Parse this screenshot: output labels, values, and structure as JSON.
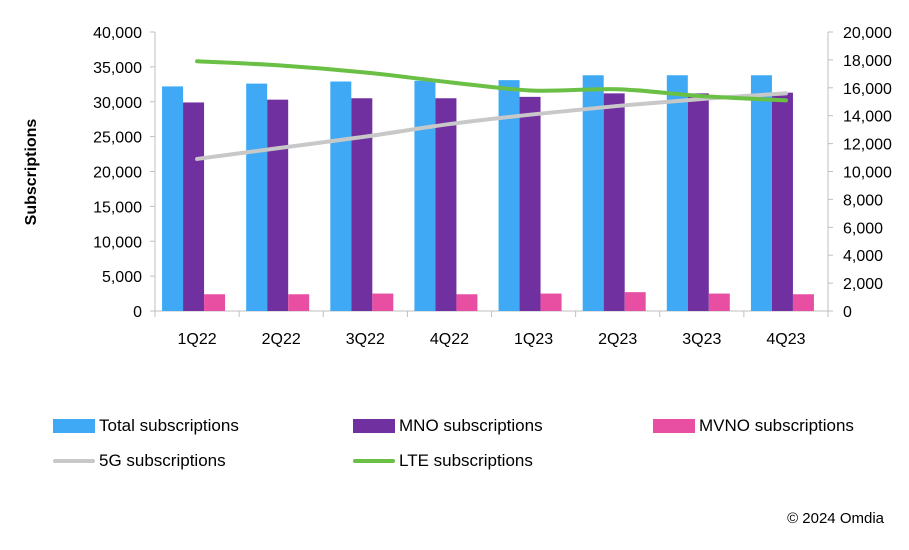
{
  "chart_data": {
    "type": "bar",
    "title": "",
    "xlabel": "",
    "ylabel": "Subscriptions",
    "categories": [
      "1Q22",
      "2Q22",
      "3Q22",
      "4Q22",
      "1Q23",
      "2Q23",
      "3Q23",
      "4Q23"
    ],
    "ylim": [
      0,
      40000
    ],
    "y2lim": [
      0,
      20000
    ],
    "yticks": [
      "0",
      "5,000",
      "10,000",
      "15,000",
      "20,000",
      "25,000",
      "30,000",
      "35,000",
      "40,000"
    ],
    "y2ticks": [
      "0",
      "2,000",
      "4,000",
      "6,000",
      "8,000",
      "10,000",
      "12,000",
      "14,000",
      "16,000",
      "18,000",
      "20,000"
    ],
    "bar_series": [
      {
        "name": "Total subscriptions",
        "color": "#3fa9f5",
        "values": [
          32200,
          32600,
          32900,
          33000,
          33100,
          33800,
          33800,
          33800
        ]
      },
      {
        "name": "MNO subscriptions",
        "color": "#7030a0",
        "values": [
          29900,
          30300,
          30500,
          30500,
          30700,
          31200,
          31200,
          31300
        ]
      },
      {
        "name": "MVNO subscriptions",
        "color": "#e84fa3",
        "values": [
          2400,
          2400,
          2500,
          2400,
          2500,
          2700,
          2500,
          2400
        ]
      }
    ],
    "line_series": [
      {
        "name": "5G subscriptions",
        "color": "#c8c8c8",
        "axis": "right",
        "values": [
          10900,
          11700,
          12500,
          13400,
          14100,
          14700,
          15200,
          15600
        ]
      },
      {
        "name": "LTE subscriptions",
        "color": "#6abf45",
        "axis": "right",
        "values": [
          17900,
          17600,
          17100,
          16400,
          15800,
          15900,
          15400,
          15100
        ]
      }
    ]
  },
  "legend": [
    {
      "label": "Total subscriptions",
      "kind": "box",
      "color": "#3fa9f5"
    },
    {
      "label": "MNO subscriptions",
      "kind": "box",
      "color": "#7030a0"
    },
    {
      "label": "MVNO subscriptions",
      "kind": "box",
      "color": "#e84fa3"
    },
    {
      "label": "5G subscriptions",
      "kind": "line",
      "color": "#c8c8c8"
    },
    {
      "label": "LTE subscriptions",
      "kind": "line",
      "color": "#6abf45"
    }
  ],
  "copyright": "© 2024 Omdia"
}
